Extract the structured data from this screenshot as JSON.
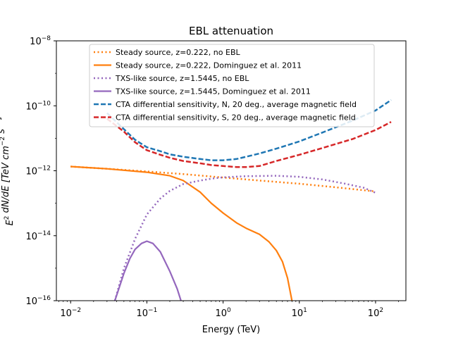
{
  "chart_data": {
    "type": "line",
    "title": "EBL attenuation",
    "xlabel": "Energy (TeV)",
    "ylabel": "E^2 dN/dE [TeV cm^-2 s^-1]",
    "xscale": "log",
    "yscale": "log",
    "xlim": [
      0.0065,
      250
    ],
    "ylim": [
      1e-16,
      1e-08
    ],
    "xticks": [
      {
        "value": 0.01,
        "base": "10",
        "exp": "−2"
      },
      {
        "value": 0.1,
        "base": "10",
        "exp": "−1"
      },
      {
        "value": 1,
        "base": "10",
        "exp": "0"
      },
      {
        "value": 10,
        "base": "10",
        "exp": "1"
      },
      {
        "value": 100,
        "base": "10",
        "exp": "2"
      }
    ],
    "yticks": [
      {
        "value": 1e-16,
        "base": "10",
        "exp": "−16"
      },
      {
        "value": 1e-14,
        "base": "10",
        "exp": "−14"
      },
      {
        "value": 1e-12,
        "base": "10",
        "exp": "−12"
      },
      {
        "value": 1e-10,
        "base": "10",
        "exp": "−10"
      },
      {
        "value": 1e-08,
        "base": "10",
        "exp": "−8"
      }
    ],
    "legend_placement": "upper-center",
    "grid": false,
    "series": [
      {
        "name": "Steady source, z=0.222, no EBL",
        "color": "#ff7f0e",
        "style": "dotted",
        "points": [
          [
            0.01,
            1.35e-12
          ],
          [
            0.03,
            1.15e-12
          ],
          [
            0.1,
            9.5e-13
          ],
          [
            0.3,
            7.9e-13
          ],
          [
            1,
            6.2e-13
          ],
          [
            3,
            5e-13
          ],
          [
            10,
            4e-13
          ],
          [
            30,
            3.1e-13
          ],
          [
            100,
            2.3e-13
          ]
        ]
      },
      {
        "name": "Steady source, z=0.222, Dominguez et al. 2011",
        "color": "#ff7f0e",
        "style": "solid",
        "points": [
          [
            0.01,
            1.35e-12
          ],
          [
            0.03,
            1.15e-12
          ],
          [
            0.1,
            9e-13
          ],
          [
            0.2,
            7e-13
          ],
          [
            0.3,
            5e-13
          ],
          [
            0.5,
            2.2e-13
          ],
          [
            0.7,
            1e-13
          ],
          [
            1,
            5e-14
          ],
          [
            1.5,
            2.5e-14
          ],
          [
            2,
            1.7e-14
          ],
          [
            3,
            1.1e-14
          ],
          [
            4,
            6.5e-15
          ],
          [
            5,
            3.5e-15
          ],
          [
            6,
            1.6e-15
          ],
          [
            7,
            5e-16
          ],
          [
            8,
            1e-16
          ]
        ]
      },
      {
        "name": "TXS-like source, z=1.5445, no EBL",
        "color": "#9467bd",
        "style": "dotted",
        "points": [
          [
            0.038,
            1e-16
          ],
          [
            0.05,
            1e-15
          ],
          [
            0.07,
            8e-15
          ],
          [
            0.1,
            4.5e-14
          ],
          [
            0.15,
            1.4e-13
          ],
          [
            0.2,
            2.4e-13
          ],
          [
            0.3,
            3.9e-13
          ],
          [
            0.5,
            5e-13
          ],
          [
            0.7,
            5.7e-13
          ],
          [
            1,
            6.3e-13
          ],
          [
            2,
            6.8e-13
          ],
          [
            5,
            7e-13
          ],
          [
            10,
            6.5e-13
          ],
          [
            20,
            5.4e-13
          ],
          [
            40,
            4e-13
          ],
          [
            70,
            3e-13
          ],
          [
            100,
            2.1e-13
          ]
        ]
      },
      {
        "name": "TXS-like source, z=1.5445, Dominguez et al. 2011",
        "color": "#9467bd",
        "style": "solid",
        "points": [
          [
            0.038,
            1e-16
          ],
          [
            0.05,
            7e-16
          ],
          [
            0.06,
            2e-15
          ],
          [
            0.07,
            3.8e-15
          ],
          [
            0.085,
            5.8e-15
          ],
          [
            0.1,
            6.8e-15
          ],
          [
            0.12,
            5.8e-15
          ],
          [
            0.15,
            3.2e-15
          ],
          [
            0.2,
            8e-16
          ],
          [
            0.25,
            2.3e-16
          ],
          [
            0.28,
            1e-16
          ]
        ]
      },
      {
        "name": "CTA differential sensitivity, N, 20 deg., average magnetic field",
        "color": "#1f77b4",
        "style": "dashed",
        "points": [
          [
            0.03,
            6e-11
          ],
          [
            0.05,
            1.9e-11
          ],
          [
            0.07,
            9e-12
          ],
          [
            0.1,
            5.3e-12
          ],
          [
            0.15,
            4e-12
          ],
          [
            0.2,
            3.2e-12
          ],
          [
            0.3,
            2.7e-12
          ],
          [
            0.5,
            2.3e-12
          ],
          [
            0.7,
            2.1e-12
          ],
          [
            1,
            2.1e-12
          ],
          [
            1.5,
            2.3e-12
          ],
          [
            2,
            2.7e-12
          ],
          [
            3,
            3.4e-12
          ],
          [
            5,
            4.8e-12
          ],
          [
            10,
            8e-12
          ],
          [
            20,
            1.5e-11
          ],
          [
            50,
            3.5e-11
          ],
          [
            100,
            7.2e-11
          ],
          [
            160,
            1.5e-10
          ]
        ]
      },
      {
        "name": "CTA differential sensitivity, S, 20 deg., average magnetic field",
        "color": "#d62728",
        "style": "dashed",
        "points": [
          [
            0.03,
            4e-11
          ],
          [
            0.05,
            1.6e-11
          ],
          [
            0.07,
            7.5e-12
          ],
          [
            0.1,
            4.3e-12
          ],
          [
            0.15,
            3.1e-12
          ],
          [
            0.2,
            2.5e-12
          ],
          [
            0.3,
            2e-12
          ],
          [
            0.5,
            1.7e-12
          ],
          [
            0.7,
            1.5e-12
          ],
          [
            1,
            1.4e-12
          ],
          [
            1.5,
            1.3e-12
          ],
          [
            2,
            1.3e-12
          ],
          [
            3,
            1.4e-12
          ],
          [
            5,
            2e-12
          ],
          [
            10,
            3.1e-12
          ],
          [
            20,
            5e-12
          ],
          [
            50,
            9.5e-12
          ],
          [
            100,
            1.8e-11
          ],
          [
            160,
            3.2e-11
          ]
        ]
      }
    ]
  }
}
